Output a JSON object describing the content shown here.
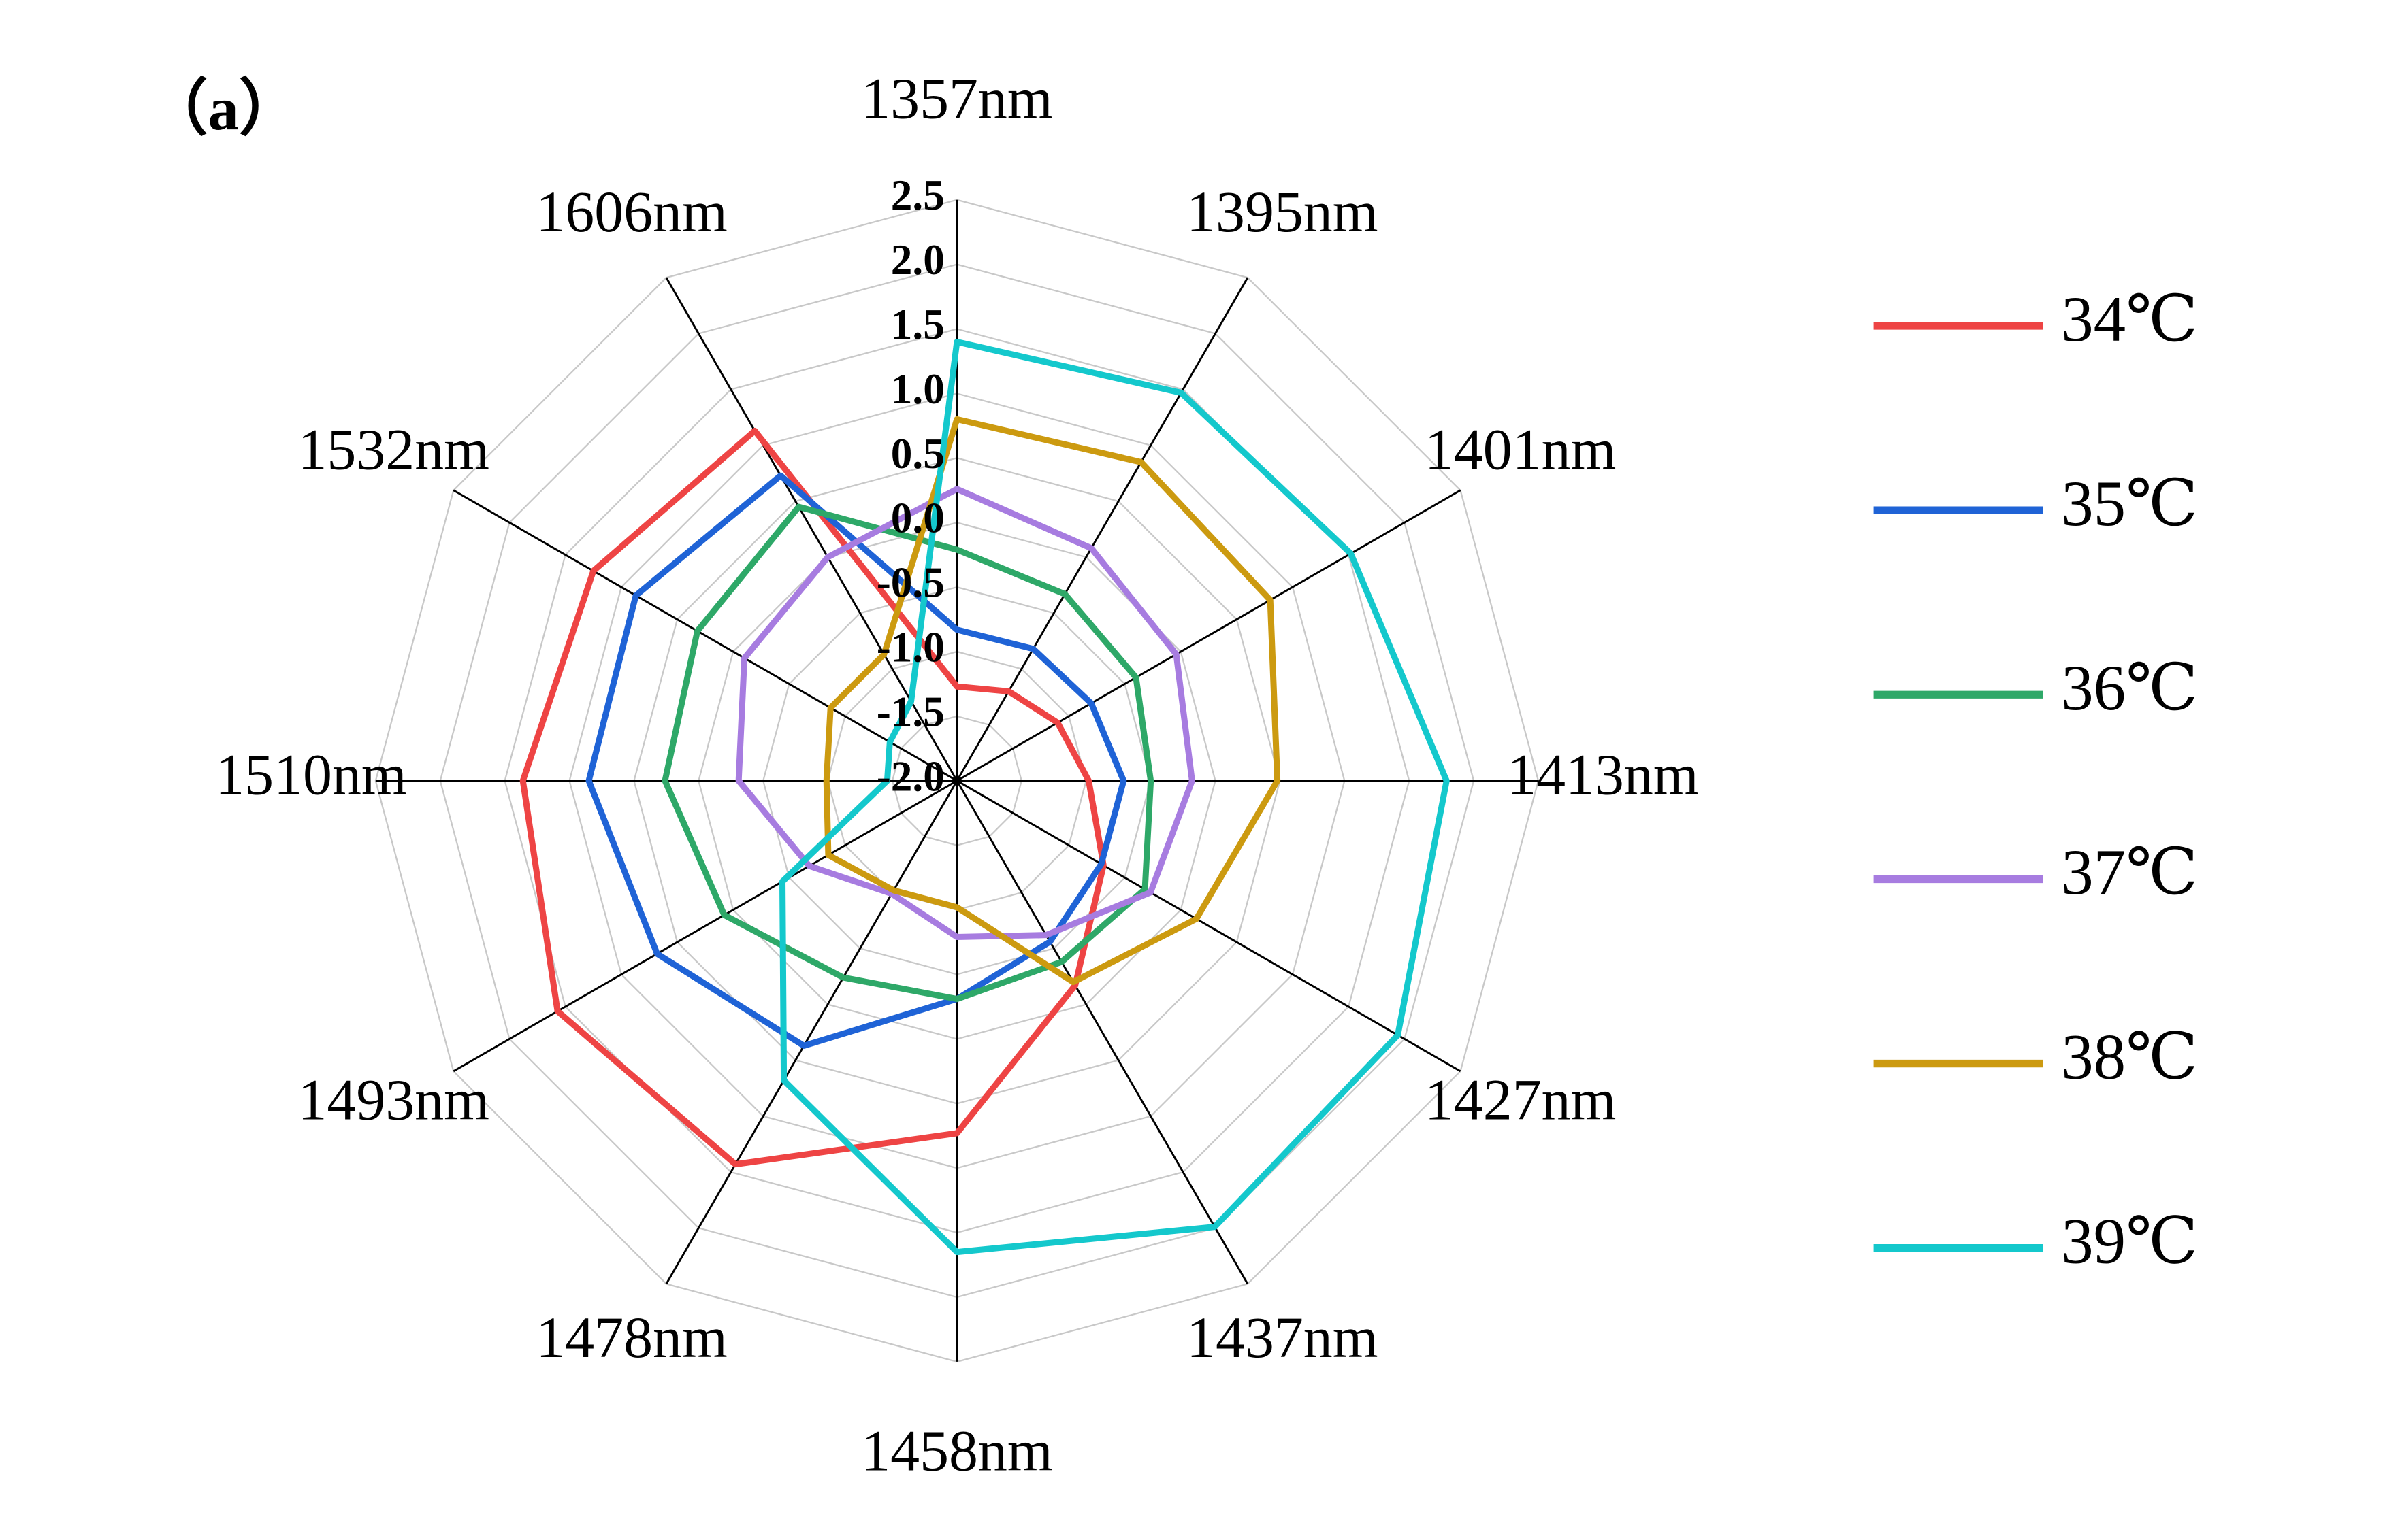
{
  "chart_data": {
    "type": "radar",
    "title": "（a）",
    "categories": [
      "1357nm",
      "1395nm",
      "1401nm",
      "1413nm",
      "1427nm",
      "1437nm",
      "1458nm",
      "1478nm",
      "1493nm",
      "1510nm",
      "1532nm",
      "1606nm"
    ],
    "ylim": [
      -2.0,
      2.5
    ],
    "yticks": [
      {
        "value": -2.0,
        "label": "-2.0"
      },
      {
        "value": -1.5,
        "label": "-1.5"
      },
      {
        "value": -1.0,
        "label": "-1.0"
      },
      {
        "value": -0.5,
        "label": "-0.5"
      },
      {
        "value": 0.0,
        "label": "0.0"
      },
      {
        "value": 0.5,
        "label": "0.5"
      },
      {
        "value": 1.0,
        "label": "1.0"
      },
      {
        "value": 1.5,
        "label": "1.5"
      },
      {
        "value": 2.0,
        "label": "2.0"
      },
      {
        "value": 2.5,
        "label": "2.5"
      }
    ],
    "grid": true,
    "series": [
      {
        "name": "34℃",
        "color": "#ee4444",
        "values": [
          -1.27,
          -1.2,
          -1.1,
          -0.98,
          -0.69,
          -0.17,
          0.73,
          1.43,
          1.57,
          1.36,
          1.25,
          1.13
        ]
      },
      {
        "name": "35℃",
        "color": "#1f63d6",
        "values": [
          -0.83,
          -0.82,
          -0.8,
          -0.71,
          -0.71,
          -0.56,
          -0.31,
          0.37,
          0.68,
          0.85,
          0.87,
          0.73
        ]
      },
      {
        "name": "36℃",
        "color": "#2ea868",
        "values": [
          -0.21,
          -0.33,
          -0.4,
          -0.5,
          -0.32,
          -0.38,
          -0.31,
          -0.24,
          0.08,
          0.26,
          0.32,
          0.45
        ]
      },
      {
        "name": "37℃",
        "color": "#a77ce0",
        "values": [
          0.26,
          0.08,
          -0.04,
          -0.18,
          -0.27,
          -0.62,
          -0.79,
          -0.99,
          -0.68,
          -0.31,
          -0.1,
          0.0
        ]
      },
      {
        "name": "38℃",
        "color": "#cc9a10",
        "values": [
          0.8,
          0.85,
          0.8,
          0.48,
          0.14,
          -0.2,
          -1.02,
          -1.02,
          -0.85,
          -0.99,
          -0.87,
          -0.87
        ]
      },
      {
        "name": "39℃",
        "color": "#14c8cc",
        "values": [
          1.4,
          1.47,
          1.52,
          1.79,
          1.94,
          1.99,
          1.65,
          0.68,
          -0.44,
          -1.46,
          -1.4,
          -1.29
        ]
      }
    ]
  }
}
